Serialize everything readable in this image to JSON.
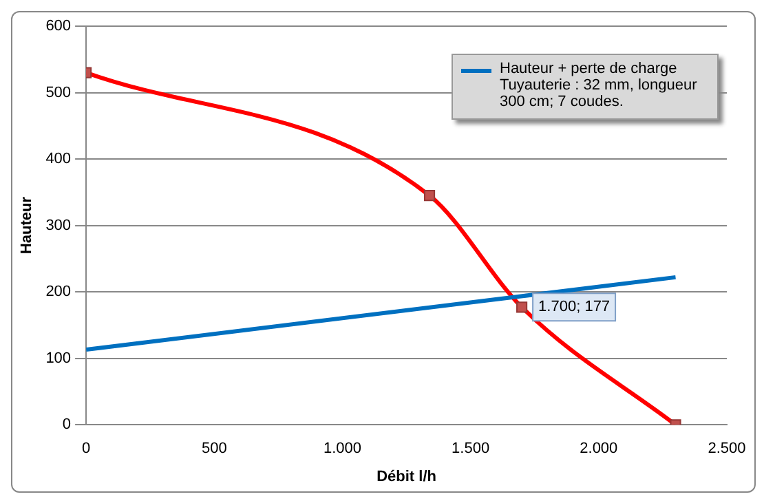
{
  "chart_data": {
    "type": "line",
    "xlabel": "Débit l/h",
    "ylabel": "Hauteur",
    "xlim": [
      0,
      2500
    ],
    "xticks": [
      0,
      500,
      {
        "value": 1000,
        "label": "1.000"
      },
      {
        "value": 1500,
        "label": "1.500"
      },
      {
        "value": 2000,
        "label": "2.000"
      },
      {
        "value": 2500,
        "label": "2.500"
      }
    ],
    "ylim": [
      0,
      600
    ],
    "yticks": [
      0,
      100,
      200,
      300,
      400,
      500,
      600
    ],
    "grid": "y",
    "legend": "top right",
    "series": [
      {
        "name": "Hauteur + perte de charge Tuyauterie : 32 mm, longueur 300 cm; 7 coudes.",
        "color": "#0070c0",
        "x": [
          0,
          2300
        ],
        "values": [
          113,
          222
        ],
        "marker": "none"
      },
      {
        "color": "#ff0000",
        "x": [
          0,
          1340,
          1700,
          2300
        ],
        "values": [
          530,
          345,
          177,
          0
        ],
        "marker": "square"
      }
    ],
    "annotations": [
      {
        "text": "1.700; 177",
        "x": 1700,
        "y": 177
      }
    ]
  }
}
